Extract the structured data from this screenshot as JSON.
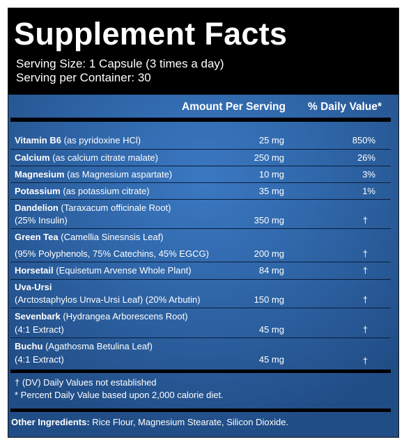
{
  "title": "Supplement Facts",
  "serving_size": "Serving Size: 1 Capsule (3 times a day)",
  "servings_per_container": "Serving per Container: 30",
  "columns": {
    "amount": "Amount Per Serving",
    "daily_value": "% Daily Value*"
  },
  "rows": [
    {
      "name": "Vitamin B6",
      "desc": " (as pyridoxine HCl)",
      "amount": "25 mg",
      "dv": "850%"
    },
    {
      "name": "Calcium",
      "desc": " (as calcium citrate malate)",
      "amount": "250 mg",
      "dv": "26%"
    },
    {
      "name": "Magnesium",
      "desc": " (as Magnesium aspartate)",
      "amount": "10 mg",
      "dv": "3%"
    },
    {
      "name": "Potassium",
      "desc": " (as potassium citrate)",
      "amount": "35 mg",
      "dv": "1%"
    },
    {
      "name": "Dandelion",
      "desc": " (Taraxacum officinale Root)",
      "line2": "(25% Insulin)",
      "amount": "350 mg",
      "dv": "†"
    },
    {
      "name": "Green Tea",
      "desc": " (Camellia Sinesnsis Leaf)",
      "line2": "(95% Polyphenols, 75% Catechins, 45% EGCG)",
      "amount": "200 mg",
      "dv": "†"
    },
    {
      "name": "Horsetail",
      "desc": " (Equisetum Arvense Whole Plant)",
      "amount": "84 mg",
      "dv": "†"
    },
    {
      "name": "Uva-Ursi",
      "desc": "",
      "line2": "(Arctostaphylos Unva-Ursi Leaf) (20% Arbutin)",
      "amount": "150 mg",
      "dv": "†"
    },
    {
      "name": "Sevenbark",
      "desc": " (Hydrangea Arborescens Root)",
      "line2": "(4:1 Extract)",
      "amount": "45 mg",
      "dv": "†"
    },
    {
      "name": "Buchu",
      "desc": " (Agathosma Betulina Leaf)",
      "line2": "(4:1 Extract)",
      "amount": "45 mg",
      "dv": "†"
    }
  ],
  "footnotes": [
    "† (DV) Daily Values not established",
    "* Percent Daily Value based upon 2,000 calorie diet."
  ],
  "other_ingredients": {
    "label": "Other Ingredients:",
    "text": " Rice Flour, Magnesium Stearate, Silicon Dioxide."
  },
  "colors": {
    "panel_blue": "#2c62a3",
    "header_black": "#000000",
    "text": "#ffffff"
  }
}
